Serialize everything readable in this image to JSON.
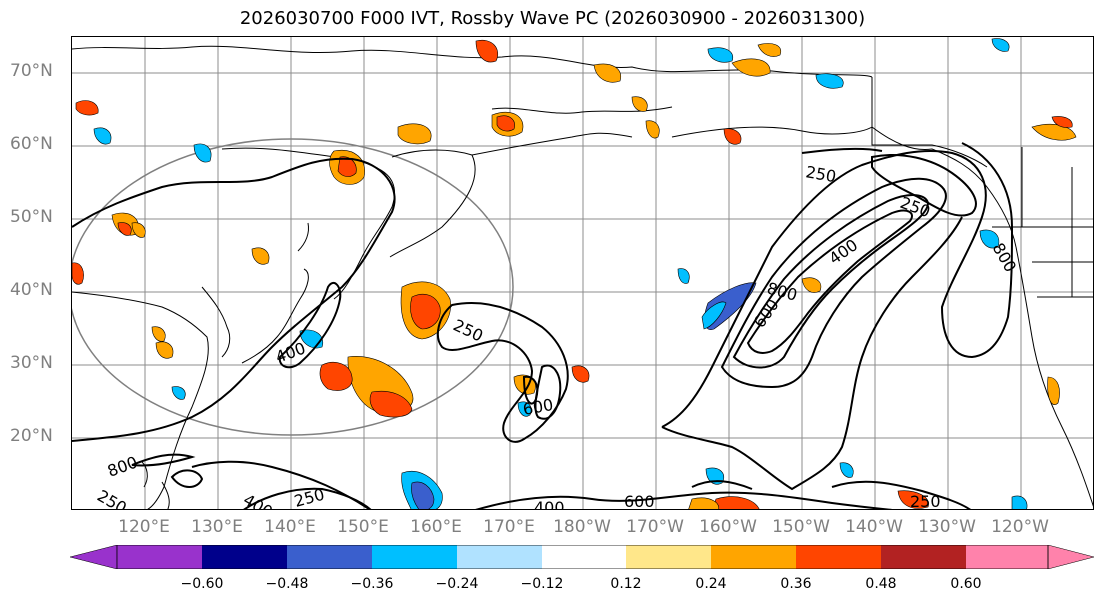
{
  "title": "2026030700 F000 IVT, Rossby Wave PC (2026030900 - 2026031300)",
  "map": {
    "projection": "PlateCarree",
    "lon_range_east": [
      110,
      250
    ],
    "lat_range": [
      10,
      75
    ],
    "lat_labels": [
      "70°N",
      "60°N",
      "50°N",
      "40°N",
      "30°N",
      "20°N"
    ],
    "lon_labels": [
      "120°E",
      "130°E",
      "140°E",
      "150°E",
      "160°E",
      "170°E",
      "180°W",
      "170°W",
      "160°W",
      "150°W",
      "140°W",
      "130°W",
      "120°W"
    ],
    "contour_labels": [
      "250",
      "400",
      "600",
      "800",
      "250",
      "400",
      "250",
      "400",
      "600",
      "250",
      "250",
      "250",
      "400",
      "800",
      "600",
      "800",
      "400",
      "250"
    ],
    "contour_levels": [
      250,
      400,
      600,
      800
    ]
  },
  "colorbar": {
    "ticks": [
      "−0.60",
      "−0.48",
      "−0.36",
      "−0.24",
      "−0.12",
      "0.12",
      "0.24",
      "0.36",
      "0.48",
      "0.60"
    ],
    "colors": [
      "#9932cc",
      "#00008b",
      "#3a5fcd",
      "#00bfff",
      "#b0e2ff",
      "#ffffff",
      "#ffe78a",
      "#ffa500",
      "#ff4500",
      "#b22222",
      "#ff82ab",
      "#ff82ab"
    ],
    "extend_low_color": "#9932cc",
    "extend_high_color": "#ff82ab"
  }
}
